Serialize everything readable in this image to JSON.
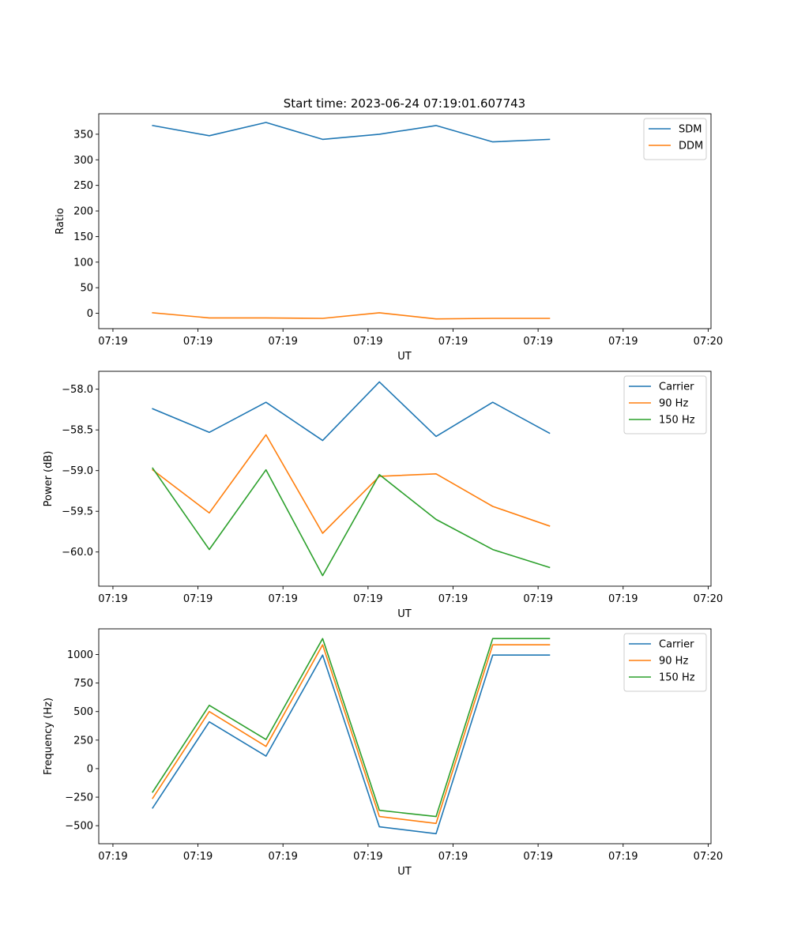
{
  "figure": {
    "title": "Start time: 2023-06-24 07:19:01.607743"
  },
  "colors": {
    "blue": "#1f77b4",
    "orange": "#ff7f0e",
    "green": "#2ca02c"
  },
  "chart_data": [
    {
      "type": "line",
      "title": "Start time: 2023-06-24 07:19:01.607743",
      "xlabel": "UT",
      "ylabel": "Ratio",
      "x_tick_labels": [
        "07:19",
        "07:19",
        "07:19",
        "07:19",
        "07:19",
        "07:19",
        "07:19",
        "07:20"
      ],
      "x_tick_positions": [
        -0.5,
        1,
        2.5,
        4,
        5.5,
        7,
        8.5,
        10
      ],
      "xlim": [
        -0.75,
        10.05
      ],
      "ylim": [
        -30,
        390
      ],
      "y_ticks": [
        0,
        50,
        100,
        150,
        200,
        250,
        300,
        350
      ],
      "y_tick_labels": [
        "0",
        "50",
        "100",
        "150",
        "200",
        "250",
        "300",
        "350"
      ],
      "x": [
        0.2,
        1.2,
        2.2,
        3.2,
        4.2,
        5.2,
        6.2,
        7.2
      ],
      "legend": "upper right",
      "series": [
        {
          "name": "SDM",
          "color": "blue",
          "values": [
            367,
            347,
            373,
            340,
            350,
            367,
            335,
            340
          ]
        },
        {
          "name": "DDM",
          "color": "orange",
          "values": [
            1,
            -9,
            -9,
            -10,
            1,
            -11,
            -10,
            -10
          ]
        }
      ]
    },
    {
      "type": "line",
      "title": "",
      "xlabel": "UT",
      "ylabel": "Power (dB)",
      "x_tick_labels": [
        "07:19",
        "07:19",
        "07:19",
        "07:19",
        "07:19",
        "07:19",
        "07:19",
        "07:20"
      ],
      "x_tick_positions": [
        -0.5,
        1,
        2.5,
        4,
        5.5,
        7,
        8.5,
        10
      ],
      "xlim": [
        -0.75,
        10.05
      ],
      "ylim": [
        -60.42,
        -57.78
      ],
      "y_ticks": [
        -60.0,
        -59.5,
        -59.0,
        -58.5,
        -58.0
      ],
      "y_tick_labels": [
        "−60.0",
        "−59.5",
        "−59.0",
        "−58.5",
        "−58.0"
      ],
      "x": [
        0.2,
        1.2,
        2.2,
        3.2,
        4.2,
        5.2,
        6.2,
        7.2
      ],
      "legend": "upper right",
      "series": [
        {
          "name": "Carrier",
          "color": "blue",
          "values": [
            -58.24,
            -58.53,
            -58.16,
            -58.63,
            -57.91,
            -58.58,
            -58.16,
            -58.54
          ]
        },
        {
          "name": "90 Hz",
          "color": "orange",
          "values": [
            -58.99,
            -59.52,
            -58.56,
            -59.77,
            -59.07,
            -59.04,
            -59.44,
            -59.68
          ]
        },
        {
          "name": "150 Hz",
          "color": "green",
          "values": [
            -58.97,
            -59.97,
            -58.99,
            -60.29,
            -59.05,
            -59.6,
            -59.97,
            -60.19
          ]
        }
      ]
    },
    {
      "type": "line",
      "title": "",
      "xlabel": "UT",
      "ylabel": "Frequency (Hz)",
      "x_tick_labels": [
        "07:19",
        "07:19",
        "07:19",
        "07:19",
        "07:19",
        "07:19",
        "07:19",
        "07:20"
      ],
      "x_tick_positions": [
        -0.5,
        1,
        2.5,
        4,
        5.5,
        7,
        8.5,
        10
      ],
      "xlim": [
        -0.75,
        10.05
      ],
      "ylim": [
        -658,
        1225
      ],
      "y_ticks": [
        -500,
        -250,
        0,
        250,
        500,
        750,
        1000
      ],
      "y_tick_labels": [
        "−500",
        "−250",
        "0",
        "250",
        "500",
        "750",
        "1000"
      ],
      "x": [
        0.2,
        1.2,
        2.2,
        3.2,
        4.2,
        5.2,
        6.2,
        7.2
      ],
      "legend": "upper right",
      "series": [
        {
          "name": "Carrier",
          "color": "blue",
          "values": [
            -345,
            410,
            110,
            995,
            -510,
            -570,
            995,
            995
          ]
        },
        {
          "name": "90 Hz",
          "color": "orange",
          "values": [
            -260,
            500,
            195,
            1085,
            -420,
            -480,
            1085,
            1085
          ]
        },
        {
          "name": "150 Hz",
          "color": "green",
          "values": [
            -205,
            555,
            255,
            1140,
            -365,
            -420,
            1140,
            1140
          ]
        }
      ]
    }
  ]
}
